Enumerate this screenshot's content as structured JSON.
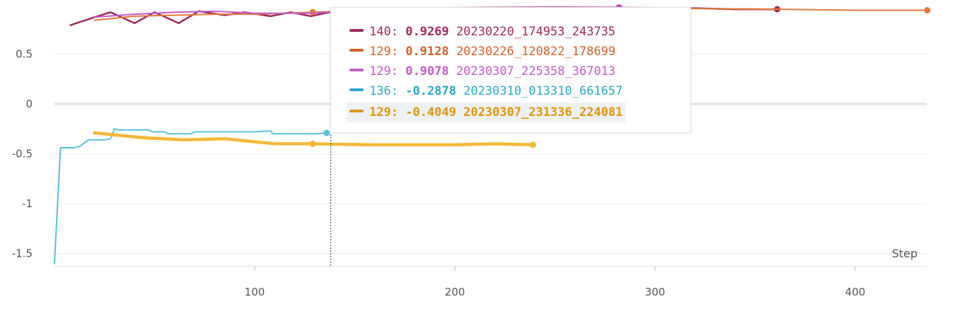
{
  "chart_data": {
    "type": "line",
    "xlabel": "Step",
    "ylabel": "",
    "xlim": [
      -2,
      438
    ],
    "ylim": [
      -1.6,
      0.97
    ],
    "x_ticks": [
      100,
      200,
      300,
      400
    ],
    "y_ticks": [
      0.5,
      0,
      -0.5,
      -1,
      -1.5
    ],
    "x_tick_labels": [
      "100",
      "200",
      "300",
      "400"
    ],
    "y_tick_labels": [
      "0.5",
      "0",
      "-0.5",
      "-1",
      "-1.5"
    ],
    "grid": true,
    "hover_step": 138,
    "series": [
      {
        "name": "20230220_174953_243735",
        "color": "#9e2a5e",
        "width": 2.5,
        "points": [
          [
            8,
            0.79
          ],
          [
            20,
            0.87
          ],
          [
            28,
            0.92
          ],
          [
            40,
            0.81
          ],
          [
            50,
            0.92
          ],
          [
            62,
            0.81
          ],
          [
            72,
            0.93
          ],
          [
            85,
            0.89
          ],
          [
            95,
            0.92
          ],
          [
            108,
            0.88
          ],
          [
            118,
            0.92
          ],
          [
            128,
            0.88
          ],
          [
            140,
            0.93
          ],
          [
            180,
            0.96
          ],
          [
            250,
            0.97
          ],
          [
            320,
            0.96
          ],
          [
            340,
            0.95
          ],
          [
            361,
            0.95
          ]
        ],
        "end_marker": true
      },
      {
        "name": "20230226_120822_178699",
        "color": "#e07a3a",
        "width": 2,
        "points": [
          [
            20,
            0.84
          ],
          [
            40,
            0.88
          ],
          [
            60,
            0.89
          ],
          [
            80,
            0.9
          ],
          [
            100,
            0.9
          ],
          [
            129,
            0.92
          ],
          [
            160,
            0.94
          ],
          [
            200,
            0.95
          ],
          [
            250,
            0.96
          ],
          [
            300,
            0.96
          ],
          [
            361,
            0.95
          ],
          [
            400,
            0.94
          ],
          [
            436,
            0.94
          ]
        ],
        "end_marker": true,
        "markers_at": [
          129
        ]
      },
      {
        "name": "20230307_225358_367013",
        "color": "#c45cc8",
        "width": 2,
        "points": [
          [
            20,
            0.87
          ],
          [
            40,
            0.9
          ],
          [
            60,
            0.92
          ],
          [
            80,
            0.93
          ],
          [
            100,
            0.91
          ],
          [
            129,
            0.91
          ],
          [
            150,
            0.94
          ],
          [
            200,
            0.96
          ],
          [
            250,
            0.97
          ],
          [
            282,
            0.97
          ]
        ],
        "end_marker": true
      },
      {
        "name": "20230310_013310_661657",
        "color": "#5bc0d8",
        "width": 2,
        "points": [
          [
            0,
            -1.6
          ],
          [
            3,
            -0.44
          ],
          [
            10,
            -0.44
          ],
          [
            13,
            -0.42
          ],
          [
            17,
            -0.36
          ],
          [
            25,
            -0.36
          ],
          [
            28,
            -0.35
          ],
          [
            30,
            -0.25
          ],
          [
            32,
            -0.26
          ],
          [
            47,
            -0.26
          ],
          [
            49,
            -0.28
          ],
          [
            55,
            -0.28
          ],
          [
            57,
            -0.3
          ],
          [
            68,
            -0.3
          ],
          [
            70,
            -0.28
          ],
          [
            100,
            -0.28
          ],
          [
            108,
            -0.27
          ],
          [
            109,
            -0.3
          ],
          [
            130,
            -0.3
          ],
          [
            136,
            -0.29
          ]
        ],
        "end_marker": true
      },
      {
        "name": "20230307_231336_224081",
        "color": "#f2b938",
        "width": 4.5,
        "points": [
          [
            20,
            -0.29
          ],
          [
            30,
            -0.31
          ],
          [
            45,
            -0.34
          ],
          [
            65,
            -0.36
          ],
          [
            85,
            -0.35
          ],
          [
            110,
            -0.4
          ],
          [
            129,
            -0.4
          ],
          [
            160,
            -0.41
          ],
          [
            200,
            -0.41
          ],
          [
            220,
            -0.4
          ],
          [
            239,
            -0.41
          ]
        ],
        "end_marker": true,
        "markers_at": [
          129
        ]
      }
    ]
  },
  "tooltip": {
    "rows": [
      {
        "step": "140:",
        "value": "0.9269",
        "name": "20230220_174953_243735",
        "color": "#9e2a5e",
        "highlight": false
      },
      {
        "step": "129:",
        "value": "0.9128",
        "name": "20230226_120822_178699",
        "color": "#d06228",
        "highlight": false
      },
      {
        "step": "129:",
        "value": "0.9078",
        "name": "20230307_225358_367013",
        "color": "#c45cc8",
        "highlight": false
      },
      {
        "step": "136:",
        "value": "-0.2878",
        "name": "20230310_013310_661657",
        "color": "#2aa8c4",
        "highlight": false
      },
      {
        "step": "129:",
        "value": "-0.4049",
        "name": "20230307_231336_224081",
        "color": "#e0940a",
        "highlight": true
      }
    ]
  }
}
